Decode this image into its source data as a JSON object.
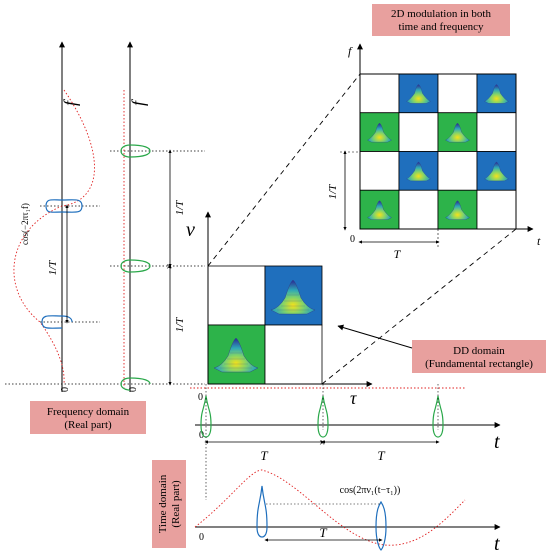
{
  "boxes": {
    "top_title_line1": "2D modulation in both",
    "top_title_line2": "time and frequency",
    "dd_line1": "DD domain",
    "dd_line2": "(Fundamental rectangle)",
    "freq_line1": "Frequency domain",
    "freq_line2": "(Real part)",
    "time_line1": "Time domain",
    "time_line2": "(Real part)"
  },
  "labels": {
    "f": "f",
    "t": "t",
    "tau": "τ",
    "nu": "ν",
    "zero": "0",
    "T": "T",
    "oneOverT": "1/T",
    "cos_freq": "cos(−2πτ₁f)",
    "cos_time": "cos(2πν₁(t−τ₁))"
  },
  "colors": {
    "box_fill": "#e8a09e",
    "blue_cell": "#1f6fbd",
    "green_cell": "#2db34a",
    "green_pulse": "#2aa84a",
    "blue_pulse": "#1f6fbd",
    "red_dotted": "#e02020"
  },
  "grid_pattern": [
    [
      "white",
      "blue",
      "white",
      "blue"
    ],
    [
      "green",
      "white",
      "green",
      "white"
    ],
    [
      "white",
      "blue",
      "white",
      "blue"
    ],
    [
      "green",
      "white",
      "green",
      "white"
    ]
  ]
}
